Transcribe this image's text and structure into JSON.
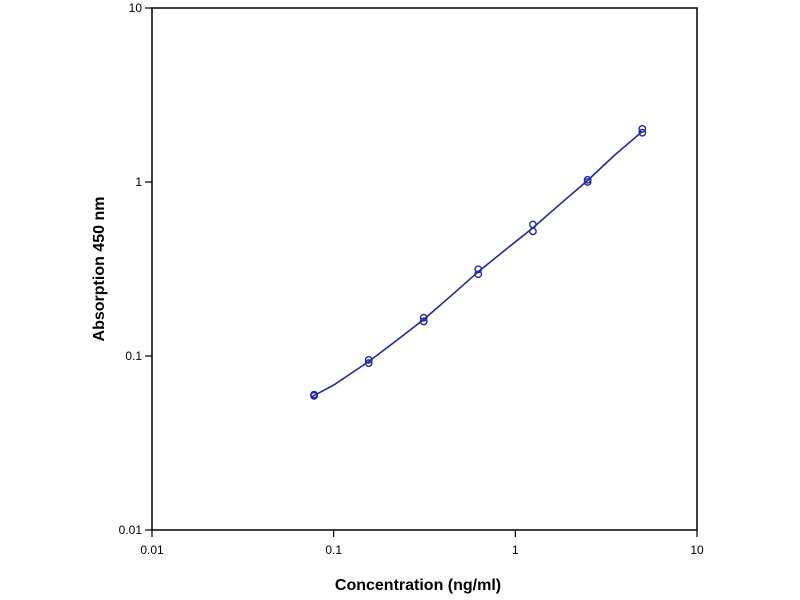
{
  "chart_data": {
    "type": "scatter",
    "title": "",
    "xlabel": "Concentration (ng/ml)",
    "ylabel": "Absorption 450 nm",
    "x_scale": "log",
    "y_scale": "log",
    "xlim": [
      0.01,
      10
    ],
    "ylim": [
      0.01,
      10
    ],
    "x_ticks": [
      "0.01",
      "0.1",
      "1",
      "10"
    ],
    "y_ticks": [
      "0.01",
      "0.1",
      "1",
      "10"
    ],
    "grid": false,
    "legend": "none",
    "color": "#1f2a9e",
    "points": [
      {
        "x": 0.078,
        "y": 0.059
      },
      {
        "x": 0.078,
        "y": 0.06
      },
      {
        "x": 0.156,
        "y": 0.091
      },
      {
        "x": 0.156,
        "y": 0.095
      },
      {
        "x": 0.313,
        "y": 0.158
      },
      {
        "x": 0.313,
        "y": 0.166
      },
      {
        "x": 0.625,
        "y": 0.295
      },
      {
        "x": 0.625,
        "y": 0.315
      },
      {
        "x": 1.25,
        "y": 0.52
      },
      {
        "x": 1.25,
        "y": 0.57
      },
      {
        "x": 2.5,
        "y": 1.0
      },
      {
        "x": 2.5,
        "y": 1.03
      },
      {
        "x": 5.0,
        "y": 1.92
      },
      {
        "x": 5.0,
        "y": 2.02
      }
    ],
    "fit_curve": [
      {
        "x": 0.075,
        "y": 0.058
      },
      {
        "x": 0.1,
        "y": 0.068
      },
      {
        "x": 0.156,
        "y": 0.093
      },
      {
        "x": 0.22,
        "y": 0.122
      },
      {
        "x": 0.313,
        "y": 0.162
      },
      {
        "x": 0.45,
        "y": 0.225
      },
      {
        "x": 0.625,
        "y": 0.305
      },
      {
        "x": 0.9,
        "y": 0.415
      },
      {
        "x": 1.25,
        "y": 0.545
      },
      {
        "x": 1.8,
        "y": 0.76
      },
      {
        "x": 2.5,
        "y": 1.02
      },
      {
        "x": 3.5,
        "y": 1.42
      },
      {
        "x": 5.0,
        "y": 1.95
      }
    ]
  }
}
